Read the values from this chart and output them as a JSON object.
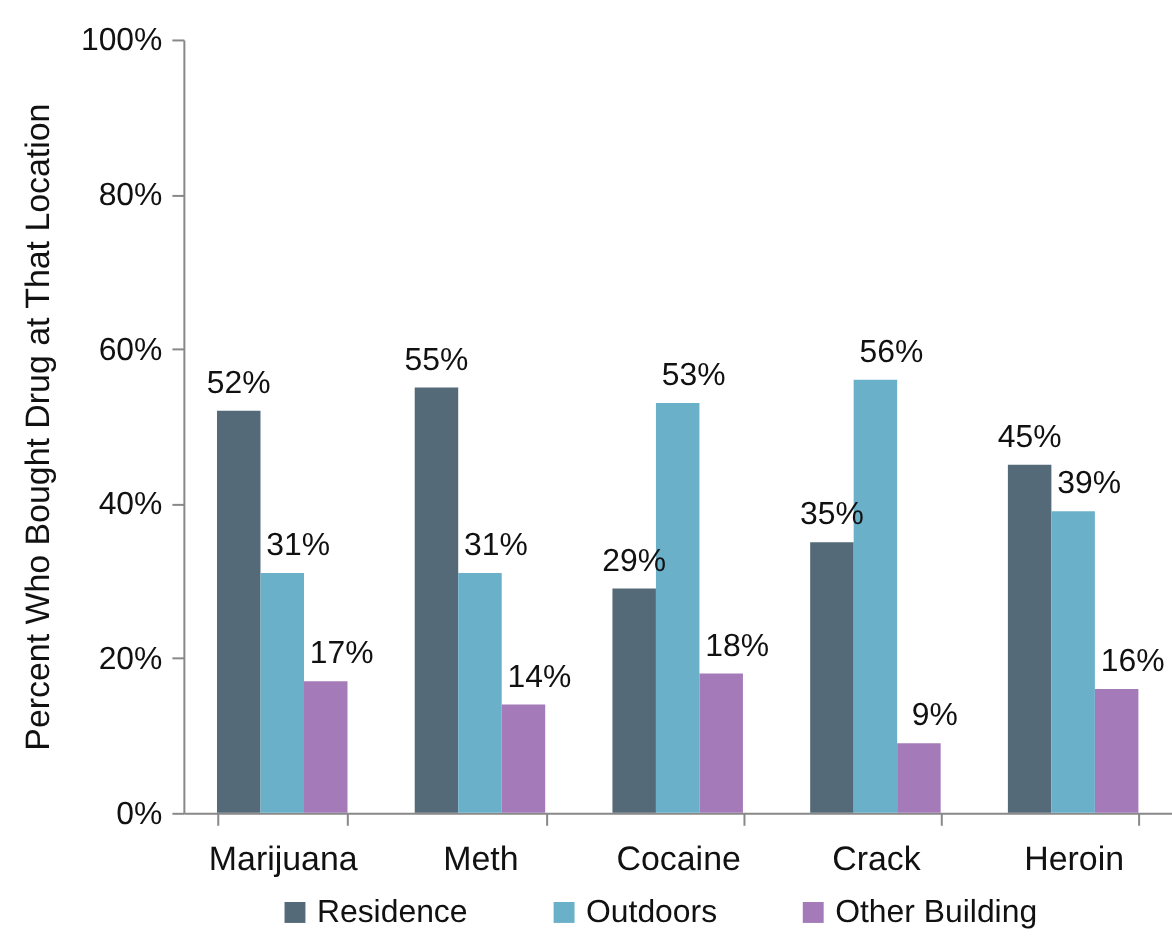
{
  "chart_data": {
    "type": "bar",
    "ylabel": "Percent Who Bought Drug at That Location",
    "categories": [
      "Marijuana",
      "Meth",
      "Cocaine",
      "Crack",
      "Heroin"
    ],
    "series": [
      {
        "name": "Residence",
        "color": "#546a79",
        "values": [
          52,
          55,
          29,
          35,
          45
        ],
        "value_labels": [
          "52%",
          "55%",
          "29%",
          "35%",
          "45%"
        ]
      },
      {
        "name": "Outdoors",
        "color": "#6ab0c9",
        "values": [
          31,
          31,
          53,
          56,
          39
        ],
        "value_labels": [
          "31%",
          "31%",
          "53%",
          "56%",
          "39%"
        ]
      },
      {
        "name": "Other Building",
        "color": "#a57ab8",
        "values": [
          17,
          14,
          18,
          9,
          16
        ],
        "value_labels": [
          "17%",
          "14%",
          "18%",
          "9%",
          "16%"
        ]
      }
    ],
    "ylim": [
      0,
      100
    ],
    "yticks": [
      {
        "value": 0,
        "label": "0%"
      },
      {
        "value": 20,
        "label": "20%"
      },
      {
        "value": 40,
        "label": "40%"
      },
      {
        "value": 60,
        "label": "60%"
      },
      {
        "value": 80,
        "label": "80%"
      },
      {
        "value": 100,
        "label": "100%"
      }
    ],
    "grid": false,
    "legend": "bottom"
  }
}
